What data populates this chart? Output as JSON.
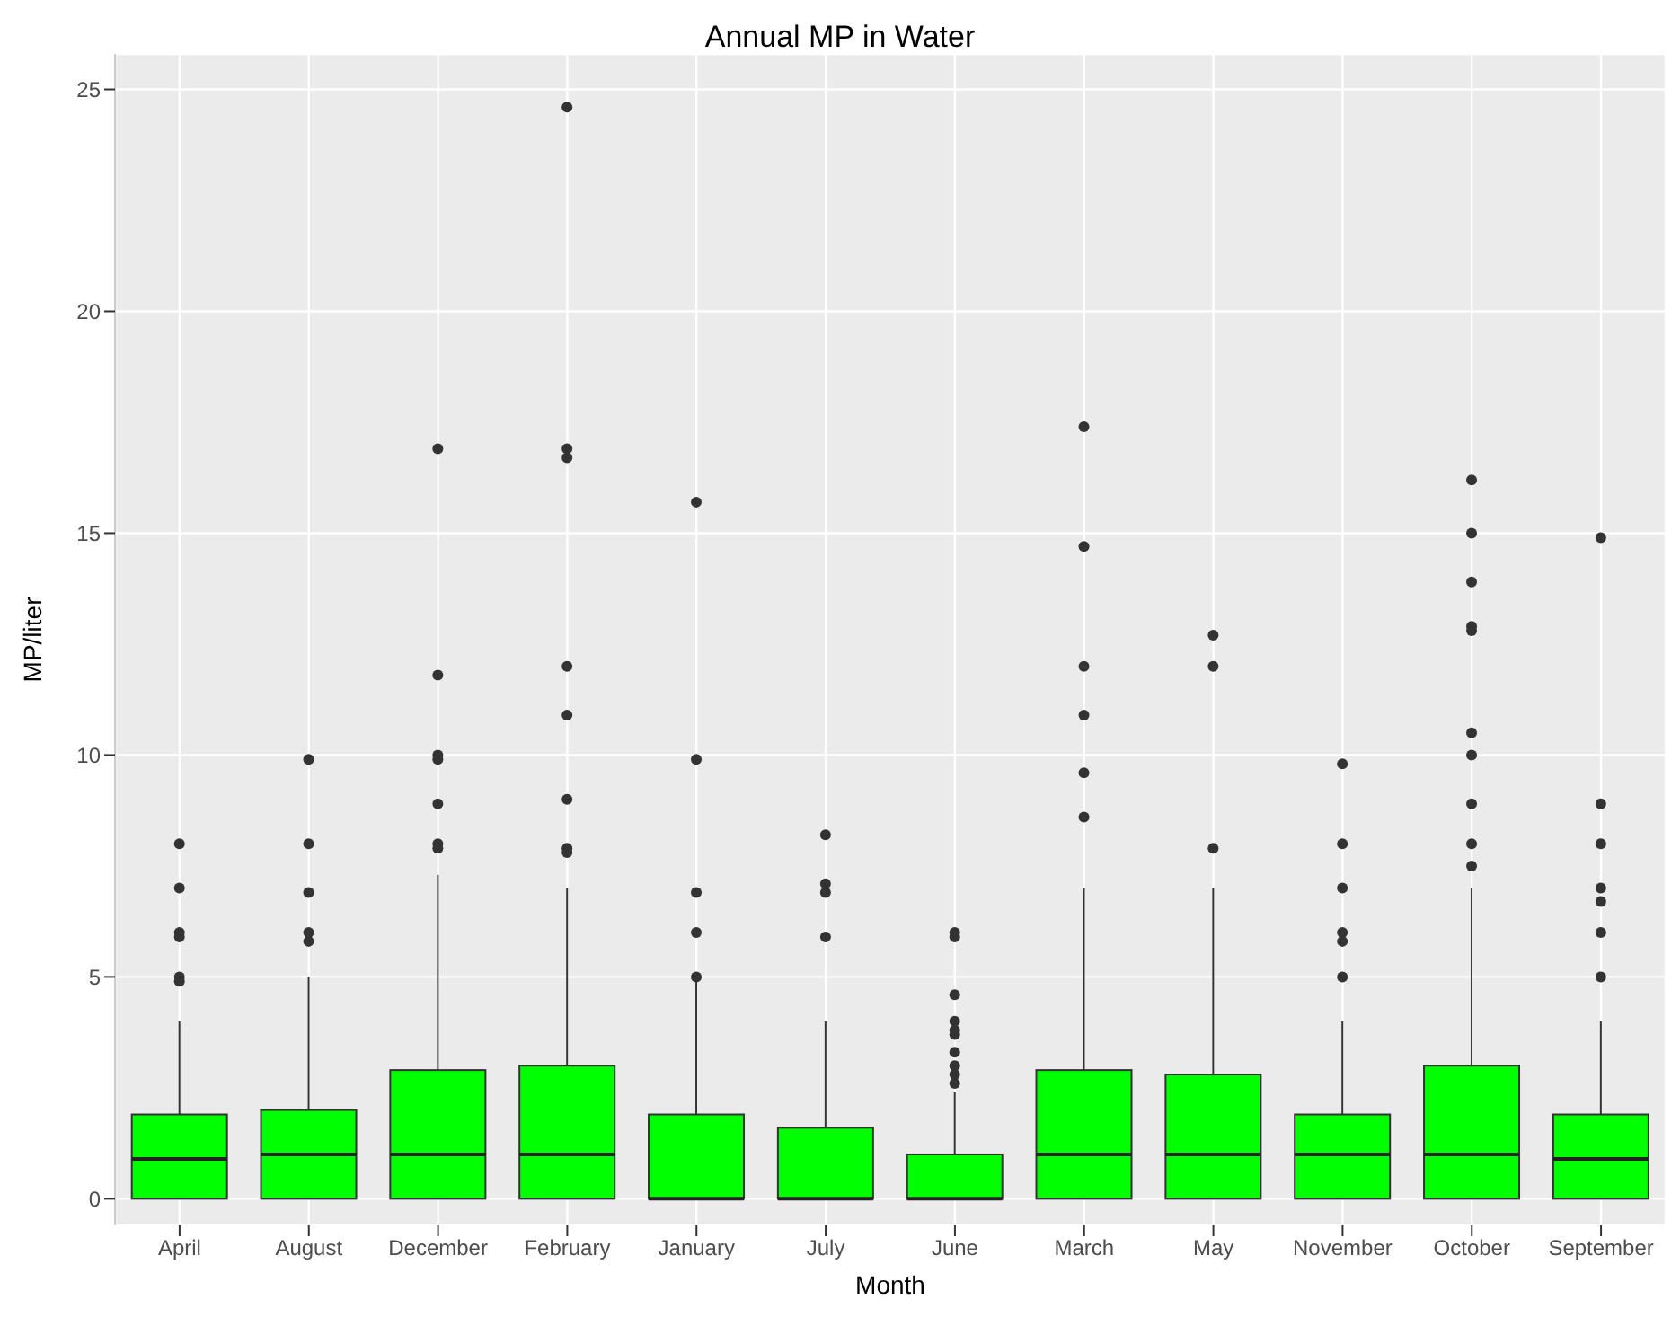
{
  "chart_data": {
    "type": "box",
    "title": "Annual MP in Water",
    "xlabel": "Month",
    "ylabel": "MP/liter",
    "categories": [
      "April",
      "August",
      "December",
      "February",
      "January",
      "July",
      "June",
      "March",
      "May",
      "November",
      "October",
      "September"
    ],
    "color": "#00ff00",
    "boxes": [
      {
        "low": 0,
        "q1": 0,
        "median": 0.9,
        "q3": 1.9,
        "high": 4,
        "outliers": [
          8,
          7,
          6,
          5.9,
          5,
          4.9
        ]
      },
      {
        "low": 0,
        "q1": 0,
        "median": 1,
        "q3": 2,
        "high": 5,
        "outliers": [
          9.9,
          8,
          6.9,
          6,
          5.8
        ]
      },
      {
        "low": 0,
        "q1": 0,
        "median": 1,
        "q3": 2.9,
        "high": 7.3,
        "outliers": [
          16.9,
          11.8,
          10,
          9.9,
          8.9,
          8,
          7.9
        ]
      },
      {
        "low": 0,
        "q1": 0,
        "median": 1,
        "q3": 3,
        "high": 7,
        "outliers": [
          24.6,
          16.9,
          16.7,
          12,
          10.9,
          9,
          7.9,
          7.8
        ]
      },
      {
        "low": 0,
        "q1": 0,
        "median": 0,
        "q3": 1.9,
        "high": 4.9,
        "outliers": [
          15.7,
          9.9,
          6.9,
          6,
          5
        ]
      },
      {
        "low": 0,
        "q1": 0,
        "median": 0,
        "q3": 1.6,
        "high": 4,
        "outliers": [
          8.2,
          7.1,
          6.9,
          5.9
        ]
      },
      {
        "low": 0,
        "q1": 0,
        "median": 0,
        "q3": 1,
        "high": 2.4,
        "outliers": [
          6,
          5.9,
          4.6,
          4,
          3.8,
          3.7,
          3.3,
          3,
          2.8,
          2.6
        ]
      },
      {
        "low": 0,
        "q1": 0,
        "median": 1,
        "q3": 2.9,
        "high": 7,
        "outliers": [
          17.4,
          14.7,
          12,
          10.9,
          9.6,
          8.6
        ]
      },
      {
        "low": 0,
        "q1": 0,
        "median": 1,
        "q3": 2.8,
        "high": 7,
        "outliers": [
          12.7,
          12,
          7.9
        ]
      },
      {
        "low": 0,
        "q1": 0,
        "median": 1,
        "q3": 1.9,
        "high": 4,
        "outliers": [
          9.8,
          8,
          7,
          6,
          5.8,
          5
        ]
      },
      {
        "low": 0,
        "q1": 0,
        "median": 1,
        "q3": 3,
        "high": 7,
        "outliers": [
          16.2,
          15,
          13.9,
          12.9,
          12.8,
          10.5,
          10,
          8.9,
          8,
          7.5
        ]
      },
      {
        "low": 0,
        "q1": 0,
        "median": 0.9,
        "q3": 1.9,
        "high": 4,
        "outliers": [
          14.9,
          8.9,
          8,
          7,
          6.7,
          6,
          5
        ]
      }
    ],
    "ylim": [
      -0.6,
      25.8
    ],
    "yticks": [
      0,
      5,
      10,
      15,
      20,
      25
    ],
    "grid": true,
    "legend": false
  }
}
